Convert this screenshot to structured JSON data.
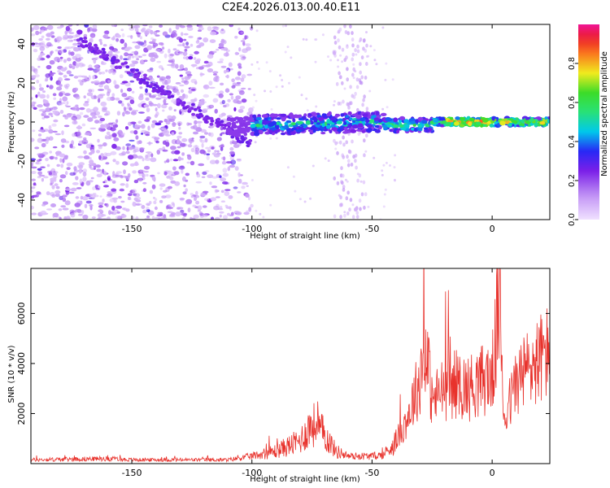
{
  "title": "C2E4.2026.013.00.40.E11",
  "colors": {
    "line": "#e8322c",
    "spectrogram_low": "#7a1fe8",
    "axis": "#000000"
  },
  "chart_data": [
    {
      "type": "heatmap",
      "xlabel": "Height of straight line (km)",
      "ylabel": "Frequency (Hz)",
      "xlim": [
        -192,
        24
      ],
      "ylim": [
        -50,
        50
      ],
      "xticks": [
        -150,
        -100,
        -50,
        0
      ],
      "xtick_labels": [
        "-150",
        "-100",
        "-50",
        "0"
      ],
      "yticks": [
        -40,
        -20,
        0,
        20,
        40
      ],
      "ytick_labels": [
        "-40",
        "-20",
        "0",
        "20",
        "40"
      ],
      "colorbar": {
        "label": "Normalized spectral amplitude",
        "range": [
          0,
          1
        ],
        "ticks": [
          0,
          0.2,
          0.4,
          0.6,
          0.8
        ],
        "tick_labels": [
          "0.0",
          "0.2",
          "0.4",
          "0.6",
          "0.8"
        ],
        "colormap": "rainbow (white-violet-blue-cyan-green-yellow-red-magenta)"
      },
      "features": {
        "diagonal_streak": {
          "x": [
            -172,
            -100
          ],
          "freq_hz": [
            42,
            -12
          ]
        },
        "main_band": {
          "x": [
            -110,
            24
          ],
          "freq_hz": [
            0,
            0
          ],
          "peak_amplitude_x": [
            -18,
            0
          ]
        }
      }
    },
    {
      "type": "line",
      "xlabel": "Height of straight line (km)",
      "ylabel": "SNR (10 * v/v)",
      "xlim": [
        -192,
        24
      ],
      "ylim": [
        0,
        7800
      ],
      "xticks": [
        -150,
        -100,
        -50,
        0
      ],
      "xtick_labels": [
        "-150",
        "-100",
        "-50",
        "0"
      ],
      "yticks": [
        2000,
        4000,
        6000
      ],
      "ytick_labels": [
        "2000",
        "4000",
        "6000"
      ],
      "series": [
        {
          "x": [
            -192,
            -160,
            -150,
            -130,
            -110,
            -100,
            -90,
            -80,
            -75,
            -70,
            -65,
            -60,
            -50,
            -45,
            -40,
            -35,
            -30,
            -28,
            -25,
            -20,
            -15,
            -10,
            -5,
            0,
            3,
            5,
            8,
            10,
            15,
            20,
            24
          ],
          "values": [
            150,
            200,
            150,
            150,
            150,
            300,
            500,
            900,
            1600,
            1200,
            500,
            300,
            300,
            350,
            900,
            1900,
            3400,
            5000,
            2500,
            3000,
            3200,
            3000,
            3300,
            3500,
            6500,
            1800,
            2600,
            3300,
            3800,
            4200,
            4500
          ]
        }
      ]
    }
  ]
}
